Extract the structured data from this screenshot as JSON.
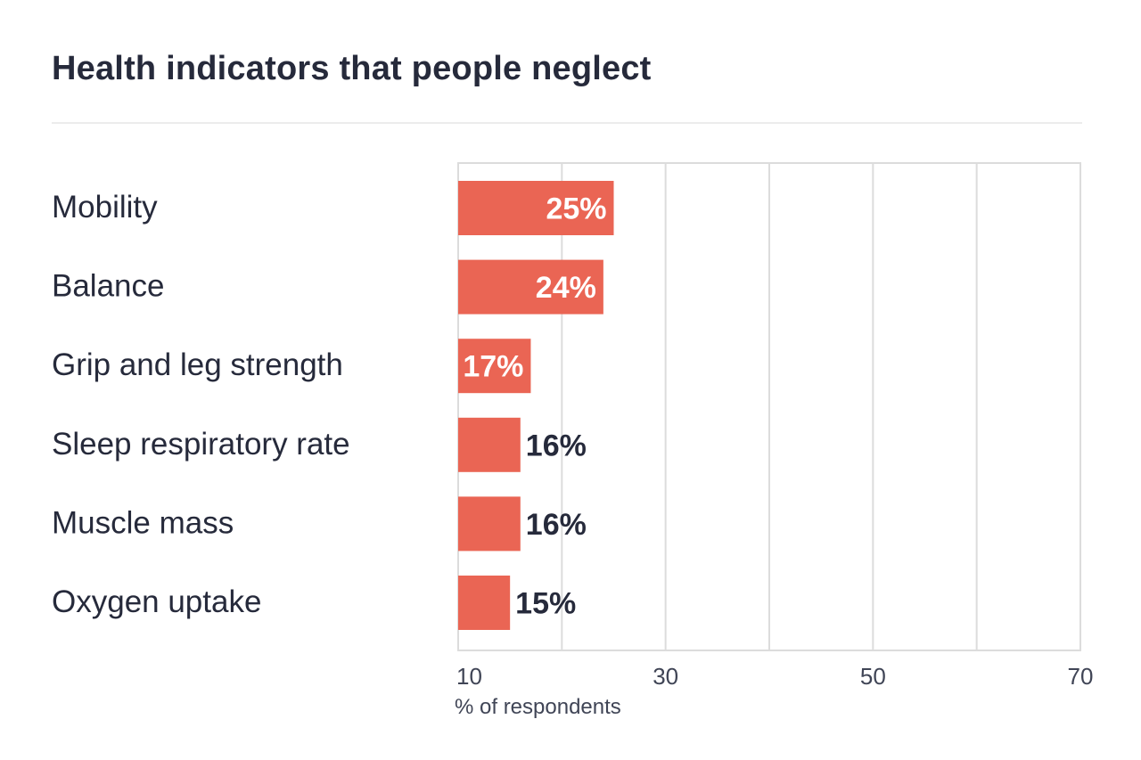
{
  "chart_data": {
    "type": "bar",
    "orientation": "horizontal",
    "title": "Health indicators that people neglect",
    "xlabel": "% of respondents",
    "ylabel": "",
    "categories": [
      "Mobility",
      "Balance",
      "Grip and leg strength",
      "Sleep respiratory rate",
      "Muscle mass",
      "Oxygen uptake"
    ],
    "values": [
      25,
      24,
      17,
      16,
      16,
      15
    ],
    "value_labels": [
      "25%",
      "24%",
      "17%",
      "16%",
      "16%",
      "15%"
    ],
    "xlim": [
      10,
      70
    ],
    "xticks": [
      10,
      30,
      50,
      70
    ],
    "xtick_labels": [
      "10",
      "30",
      "50",
      "70"
    ],
    "gridlines": [
      10,
      20,
      30,
      40,
      50,
      60,
      70
    ],
    "grid": true,
    "legend": "none",
    "colors": {
      "bar": "#ea6554",
      "text": "#262a3b",
      "label_inside": "#ffffff",
      "label_outside": "#262a3b",
      "grid": "#dcdcdc",
      "rule": "#ececec"
    }
  }
}
